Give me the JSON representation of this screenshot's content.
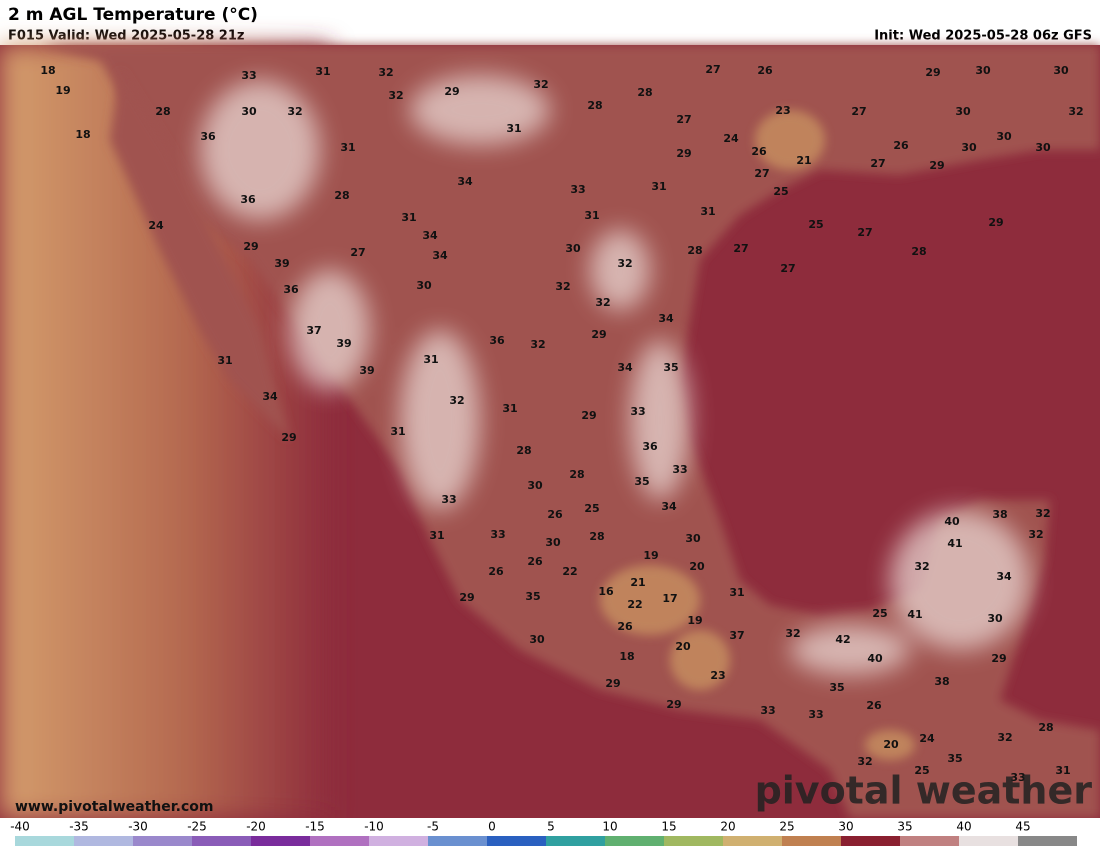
{
  "header": {
    "title": "2 m AGL Temperature (°C)",
    "valid": "F015 Valid: Wed 2025-05-28 21z",
    "init": "Init: Wed 2025-05-28 06z GFS"
  },
  "map": {
    "labels": [
      18,
      19,
      18,
      28,
      36,
      33,
      31,
      32,
      30,
      32,
      32,
      29,
      32,
      27,
      26,
      29,
      30,
      30,
      28,
      28,
      31,
      23,
      27,
      30,
      32,
      27,
      24,
      26,
      21,
      26,
      30,
      30,
      30,
      31,
      29,
      27,
      29,
      36,
      28,
      34,
      33,
      31,
      27,
      25,
      24,
      31,
      31,
      31,
      25,
      27,
      29,
      34,
      29,
      27,
      34,
      30,
      28,
      27,
      28,
      39,
      32,
      27,
      36,
      30,
      32,
      32,
      34,
      37,
      39,
      29,
      36,
      32,
      31,
      31,
      39,
      34,
      35,
      34,
      32,
      31,
      29,
      33,
      29,
      31,
      36,
      28,
      28,
      33,
      30,
      35,
      33,
      26,
      25,
      34,
      40,
      38,
      32,
      31,
      33,
      30,
      28,
      30,
      41,
      32,
      19,
      26,
      22,
      20,
      32,
      34,
      26,
      21,
      16,
      17,
      31,
      35,
      22,
      29,
      25,
      41,
      19,
      30,
      26,
      37,
      32,
      42,
      30,
      20,
      29,
      18,
      40,
      38,
      29,
      23,
      35,
      26,
      29,
      33,
      33,
      28,
      32,
      20,
      24,
      35,
      32,
      25,
      31,
      33
    ]
  },
  "watermark": "www.pivotalweather.com",
  "logo": "pivotal weather",
  "colorbar": {
    "ticks": [
      -40,
      -35,
      -30,
      -25,
      -20,
      -15,
      -10,
      -5,
      0,
      5,
      10,
      15,
      20,
      25,
      30,
      35,
      40,
      45
    ]
  }
}
